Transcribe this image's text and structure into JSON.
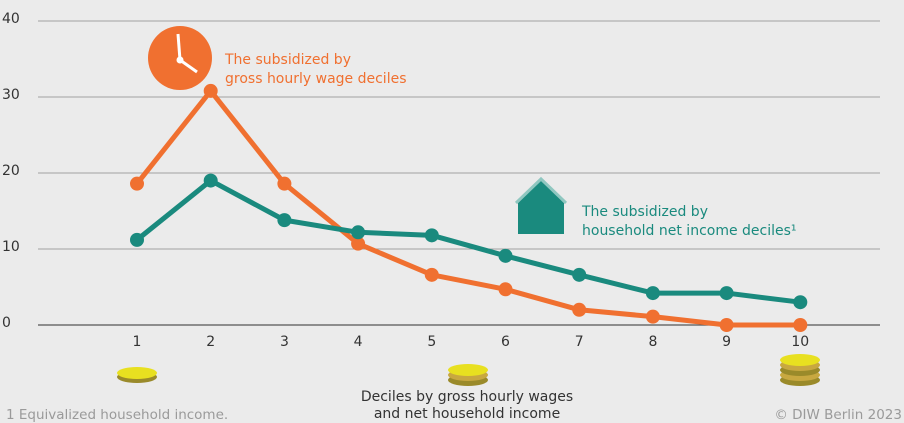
{
  "chart_data": {
    "type": "line",
    "categories": [
      1,
      2,
      3,
      4,
      5,
      6,
      7,
      8,
      9,
      10
    ],
    "series": [
      {
        "name": [
          "The subsidized by",
          "gross hourly wage deciles"
        ],
        "color": "#f07030",
        "values": [
          18.6,
          30.8,
          18.6,
          10.7,
          6.6,
          4.7,
          2.0,
          1.1,
          0,
          0
        ]
      },
      {
        "name": [
          "The subsidized by",
          "household net income deciles¹"
        ],
        "color": "#1a8a7e",
        "values": [
          11.2,
          19.0,
          13.8,
          12.2,
          11.8,
          9.1,
          6.6,
          4.2,
          4.2,
          3.0
        ]
      }
    ],
    "xlabel": [
      "Deciles by gross hourly wages",
      "and net household income"
    ],
    "footnote": "1  Equivalized household income.",
    "source": "© DIW Berlin 2023",
    "ylim": [
      0,
      40
    ],
    "yticks": [
      0,
      10,
      20,
      30,
      40
    ],
    "grid": true
  }
}
